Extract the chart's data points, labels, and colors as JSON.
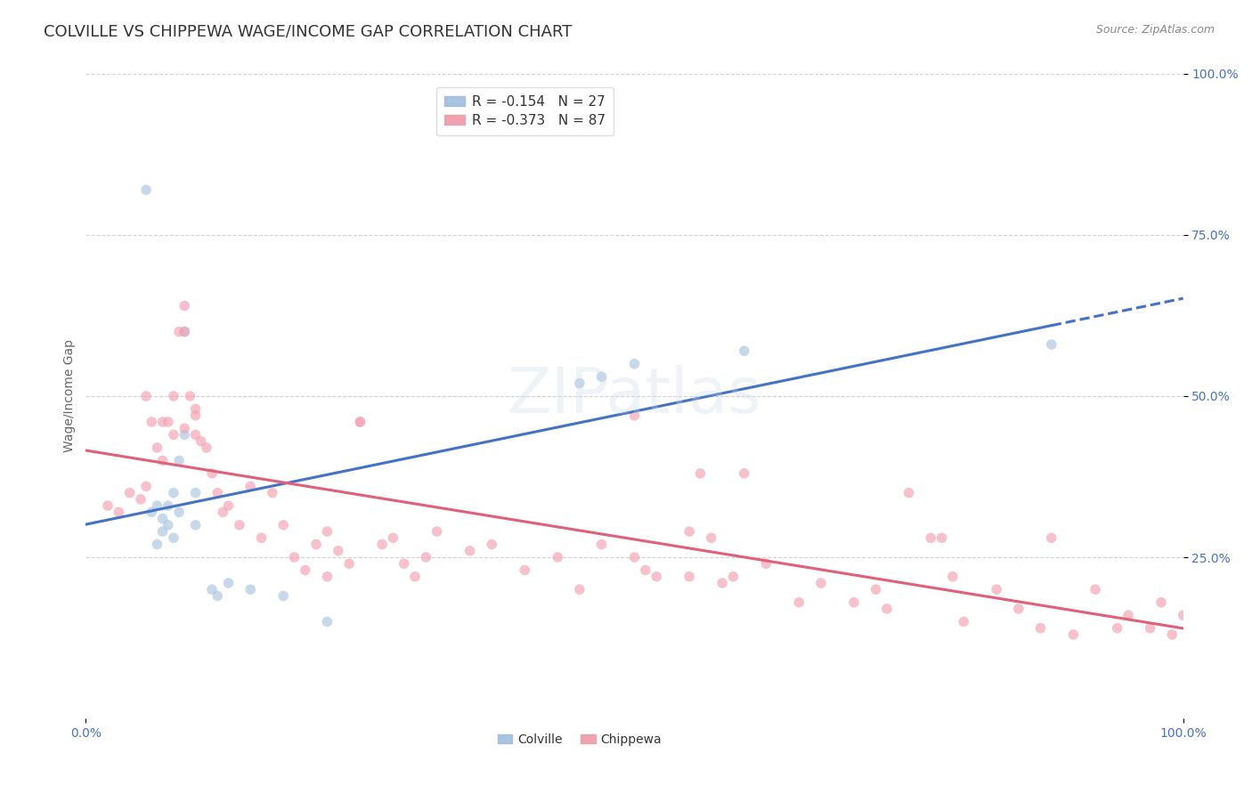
{
  "title": "COLVILLE VS CHIPPEWA WAGE/INCOME GAP CORRELATION CHART",
  "source": "Source: ZipAtlas.com",
  "ylabel": "Wage/Income Gap",
  "xlim": [
    0.0,
    1.0
  ],
  "ylim": [
    0.0,
    1.0
  ],
  "ytick_labels": [
    "25.0%",
    "50.0%",
    "75.0%",
    "100.0%"
  ],
  "ytick_positions": [
    0.25,
    0.5,
    0.75,
    1.0
  ],
  "background_color": "#ffffff",
  "grid_color": "#cccccc",
  "colville_color": "#a8c4e0",
  "chippewa_color": "#f4a0b0",
  "colville_line_color": "#4472c4",
  "chippewa_line_color": "#e0607a",
  "R_colville": -0.154,
  "N_colville": 27,
  "R_chippewa": -0.373,
  "N_chippewa": 87,
  "colville_x": [
    0.055,
    0.06,
    0.065,
    0.065,
    0.07,
    0.07,
    0.075,
    0.075,
    0.08,
    0.08,
    0.085,
    0.085,
    0.09,
    0.1,
    0.1,
    0.115,
    0.12,
    0.13,
    0.15,
    0.18,
    0.22,
    0.45,
    0.47,
    0.5,
    0.6,
    0.88,
    0.09
  ],
  "colville_y": [
    0.82,
    0.32,
    0.27,
    0.33,
    0.29,
    0.31,
    0.3,
    0.33,
    0.28,
    0.35,
    0.32,
    0.4,
    0.44,
    0.3,
    0.35,
    0.2,
    0.19,
    0.21,
    0.2,
    0.19,
    0.15,
    0.52,
    0.53,
    0.55,
    0.57,
    0.58,
    0.6
  ],
  "chippewa_x": [
    0.02,
    0.03,
    0.04,
    0.05,
    0.055,
    0.06,
    0.065,
    0.07,
    0.075,
    0.08,
    0.085,
    0.09,
    0.09,
    0.095,
    0.1,
    0.1,
    0.105,
    0.11,
    0.115,
    0.12,
    0.125,
    0.13,
    0.14,
    0.15,
    0.16,
    0.17,
    0.18,
    0.19,
    0.2,
    0.21,
    0.22,
    0.23,
    0.24,
    0.25,
    0.27,
    0.28,
    0.29,
    0.3,
    0.31,
    0.32,
    0.35,
    0.37,
    0.4,
    0.43,
    0.45,
    0.47,
    0.5,
    0.51,
    0.52,
    0.55,
    0.56,
    0.57,
    0.58,
    0.59,
    0.6,
    0.62,
    0.65,
    0.67,
    0.7,
    0.72,
    0.73,
    0.75,
    0.77,
    0.78,
    0.79,
    0.8,
    0.83,
    0.85,
    0.87,
    0.88,
    0.9,
    0.92,
    0.94,
    0.95,
    0.97,
    0.98,
    0.99,
    1.0,
    0.055,
    0.07,
    0.08,
    0.09,
    0.1,
    0.22,
    0.25,
    0.5,
    0.55
  ],
  "chippewa_y": [
    0.33,
    0.32,
    0.35,
    0.34,
    0.36,
    0.46,
    0.42,
    0.4,
    0.46,
    0.44,
    0.6,
    0.6,
    0.64,
    0.5,
    0.48,
    0.47,
    0.43,
    0.42,
    0.38,
    0.35,
    0.32,
    0.33,
    0.3,
    0.36,
    0.28,
    0.35,
    0.3,
    0.25,
    0.23,
    0.27,
    0.22,
    0.26,
    0.24,
    0.46,
    0.27,
    0.28,
    0.24,
    0.22,
    0.25,
    0.29,
    0.26,
    0.27,
    0.23,
    0.25,
    0.2,
    0.27,
    0.25,
    0.23,
    0.22,
    0.22,
    0.38,
    0.28,
    0.21,
    0.22,
    0.38,
    0.24,
    0.18,
    0.21,
    0.18,
    0.2,
    0.17,
    0.35,
    0.28,
    0.28,
    0.22,
    0.15,
    0.2,
    0.17,
    0.14,
    0.28,
    0.13,
    0.2,
    0.14,
    0.16,
    0.14,
    0.18,
    0.13,
    0.16,
    0.5,
    0.46,
    0.5,
    0.45,
    0.44,
    0.29,
    0.46,
    0.47,
    0.29
  ],
  "marker_size": 70,
  "marker_alpha": 0.65,
  "title_fontsize": 13,
  "axis_label_fontsize": 10,
  "tick_fontsize": 10,
  "legend_fontsize": 11,
  "watermark_text": "ZIPatlas",
  "watermark_color": "#c8d8e8",
  "watermark_fontsize": 52,
  "watermark_alpha": 0.3
}
